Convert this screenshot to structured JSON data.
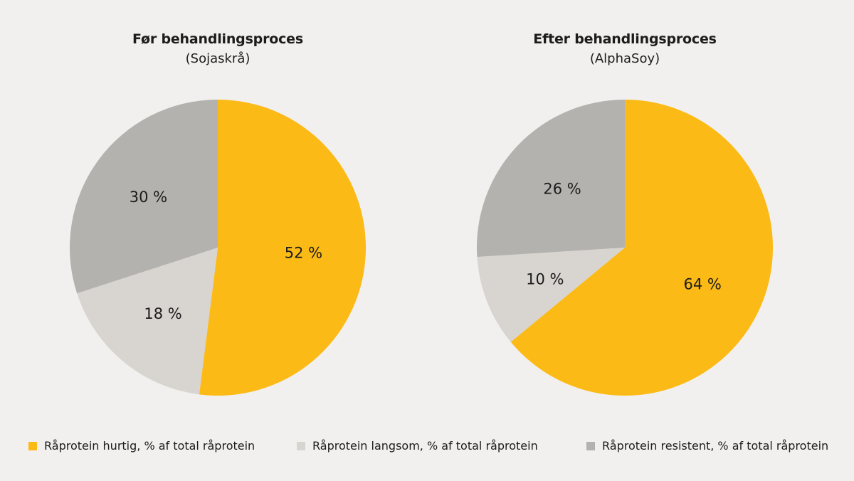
{
  "colors": {
    "fast": "#fbba16",
    "slow": "#d8d4d0",
    "resistant": "#b4b2ae"
  },
  "chart_data": [
    {
      "type": "pie",
      "title": "Før behandlingsproces",
      "subtitle": "(Sojaskrå)",
      "slices": [
        {
          "category": "Råprotein hurtig, % af total råprotein",
          "value": 52,
          "label": "52 %"
        },
        {
          "category": "Råprotein langsom, % af total råprotein",
          "value": 18,
          "label": "18 %"
        },
        {
          "category": "Råprotein resistent, % af total råprotein",
          "value": 30,
          "label": "30 %"
        }
      ],
      "legend_position": "bottom"
    },
    {
      "type": "pie",
      "title": "Efter behandlingsproces",
      "subtitle": "(AlphaSoy)",
      "slices": [
        {
          "category": "Råprotein hurtig, % af total råprotein",
          "value": 64,
          "label": "64 %"
        },
        {
          "category": "Råprotein langsom, % af total råprotein",
          "value": 10,
          "label": "10 %"
        },
        {
          "category": "Råprotein resistent, % af total råprotein",
          "value": 26,
          "label": "26 %"
        }
      ],
      "legend_position": "bottom"
    }
  ],
  "legend": [
    {
      "label": "Råprotein hurtig, % af total råprotein",
      "color": "#fbba16"
    },
    {
      "label": "Råprotein langsom, % af total råprotein",
      "color": "#d8d4d0"
    },
    {
      "label": "Råprotein resistent, % af total råprotein",
      "color": "#b4b2ae"
    }
  ]
}
